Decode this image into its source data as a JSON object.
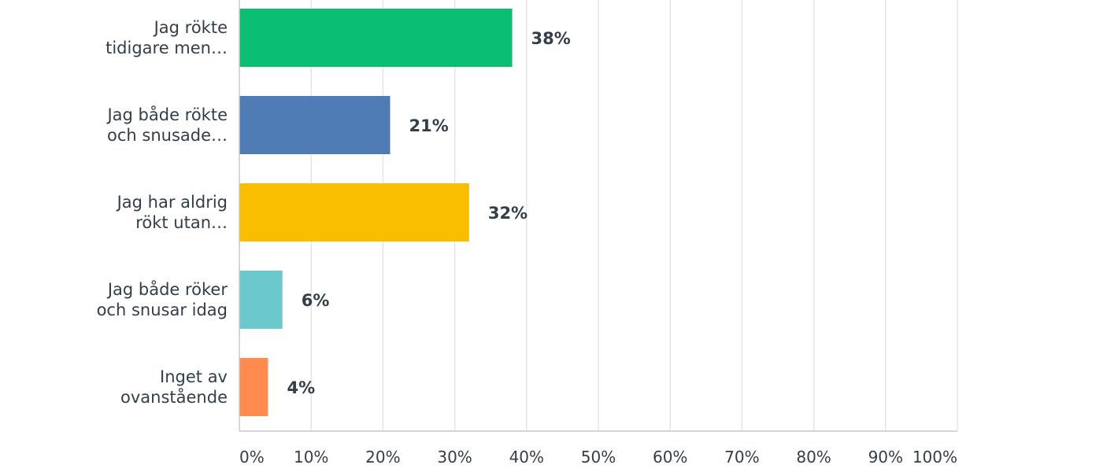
{
  "chart_data": {
    "type": "bar",
    "orientation": "horizontal",
    "categories": [
      [
        "Jag rökte",
        "tidigare men…"
      ],
      [
        "Jag både rökte",
        "och snusade…"
      ],
      [
        "Jag har aldrig",
        "rökt utan…"
      ],
      [
        "Jag både röker",
        "och snusar idag"
      ],
      [
        "Inget av",
        "ovanstående"
      ]
    ],
    "values": [
      38,
      21,
      32,
      6,
      4
    ],
    "value_labels": [
      "38%",
      "21%",
      "32%",
      "6%",
      "4%"
    ],
    "colors": [
      "#0bbf72",
      "#507cb6",
      "#f9be00",
      "#6bc8cd",
      "#ff8b4f"
    ],
    "xlim": [
      0,
      100
    ],
    "x_ticks": [
      0,
      10,
      20,
      30,
      40,
      50,
      60,
      70,
      80,
      90,
      100
    ],
    "x_tick_labels": [
      "0%",
      "10%",
      "20%",
      "30%",
      "40%",
      "50%",
      "60%",
      "70%",
      "80%",
      "90%",
      "100%"
    ],
    "grid": true,
    "legend": "none"
  }
}
